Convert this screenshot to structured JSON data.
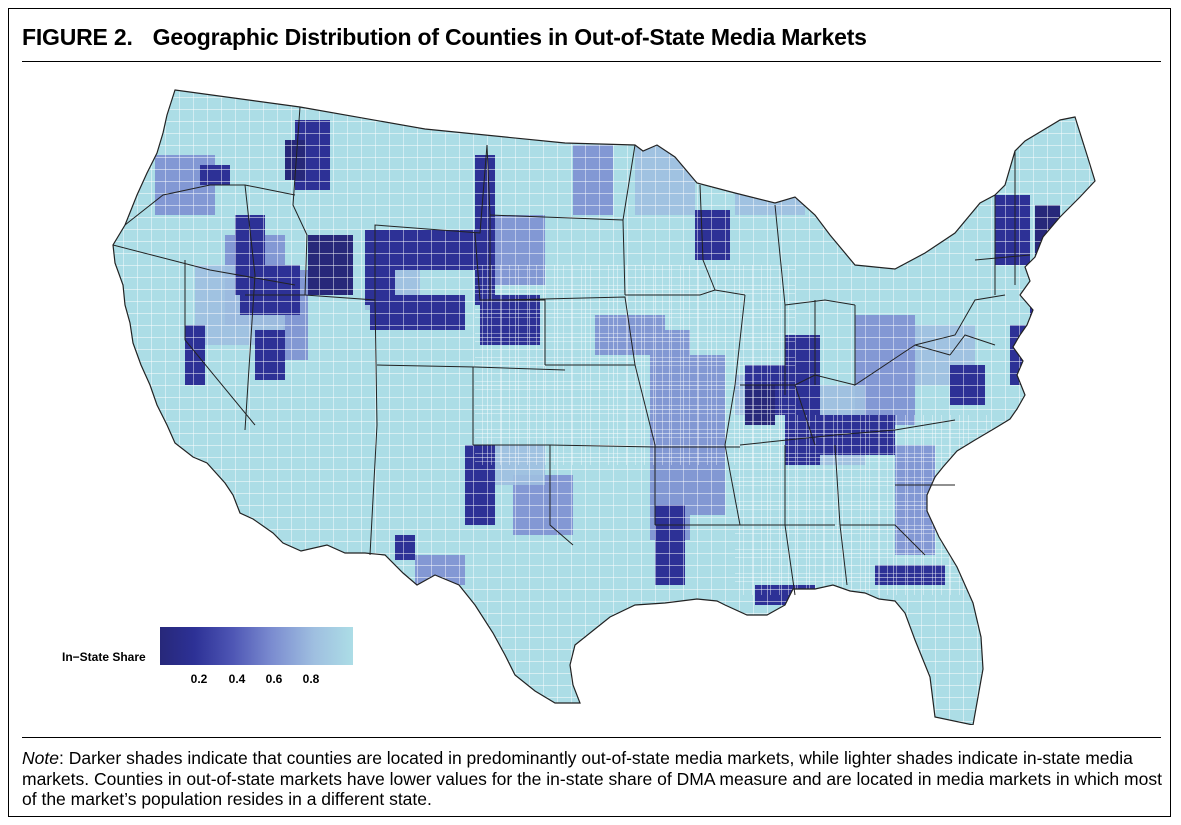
{
  "figure": {
    "number": "FIGURE 2.",
    "title": "Geographic Distribution of Counties in Out-of-State Media Markets"
  },
  "legend": {
    "title": "In−State Share",
    "ticks": [
      "0.2",
      "0.4",
      "0.6",
      "0.8"
    ],
    "colors": [
      "#27287a",
      "#2d3196",
      "#4f57b5",
      "#7b8cd0",
      "#9fbfe0",
      "#acdde6"
    ]
  },
  "map": {
    "region": "contiguous United States",
    "unit": "counties",
    "variable": "In-State Share",
    "base_color": "#acdde6",
    "border_color": "#ffffff",
    "state_border_color": "#222222"
  },
  "note": {
    "label": "Note",
    "text": ": Darker shades indicate that counties are located in predominantly out-of-state media markets, while lighter shades indicate in-state media markets. Counties in out-of-state markets have lower values for the in-state share of DMA measure and are located in media markets in which most of the market’s population resides in a different state."
  }
}
